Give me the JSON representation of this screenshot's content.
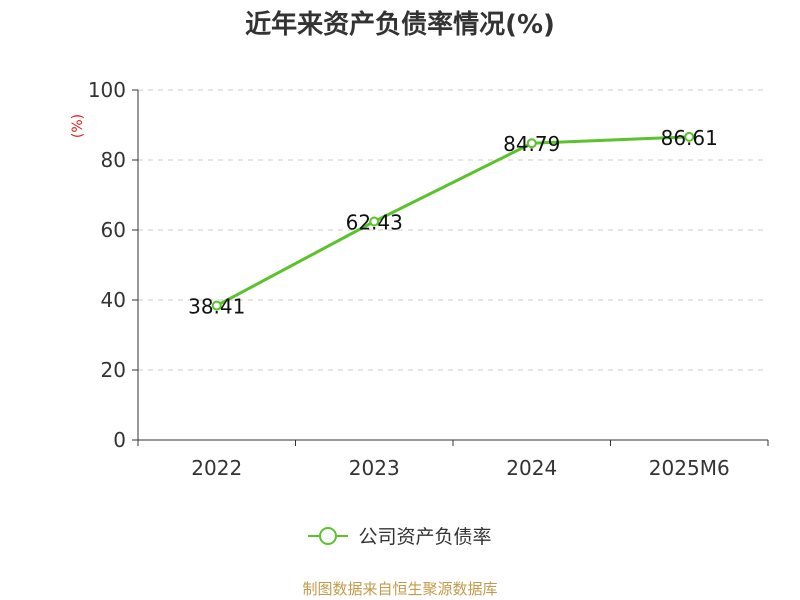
{
  "title": "近年来资产负债率情况(%)",
  "source_note": "制图数据来自恒生聚源数据库",
  "colors": {
    "line": "#5ac22b",
    "grid": "#cccccc",
    "axis": "#333333",
    "unit": "#e02020",
    "source": "#c49a4a"
  },
  "chart_data": {
    "type": "line",
    "title": "近年来资产负债率情况(%)",
    "ylabel": "(%)",
    "xlabel": "",
    "categories": [
      "2022",
      "2023",
      "2024",
      "2025M6"
    ],
    "ylim": [
      0,
      100
    ],
    "yticks": [
      0,
      20,
      40,
      60,
      80,
      100
    ],
    "grid": true,
    "legend_position": "bottom",
    "series": [
      {
        "name": "公司资产负债率",
        "values": [
          38.41,
          62.43,
          84.79,
          86.61
        ],
        "labels": [
          "38.41",
          "62.43",
          "84.79",
          "86.61"
        ]
      }
    ]
  }
}
